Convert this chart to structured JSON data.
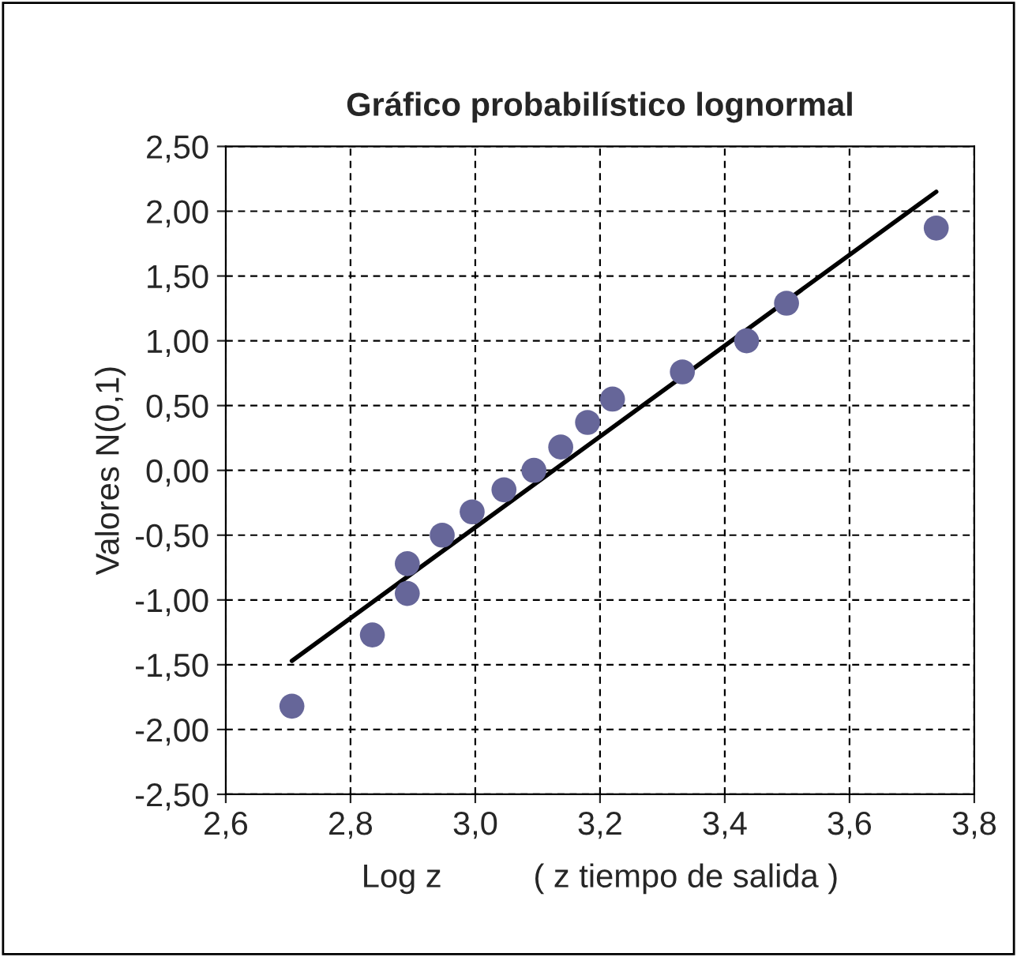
{
  "chart_data": {
    "type": "scatter",
    "title": "Gráfico probabilístico lognormal",
    "xlabel": "Log z          ( z tiempo de salida )",
    "ylabel": "Valores N(0,1)",
    "series": [
      {
        "marker": "circle",
        "color": "#666699",
        "x": [
          2.706,
          2.835,
          2.891,
          2.891,
          2.947,
          2.995,
          3.046,
          3.094,
          3.137,
          3.18,
          3.22,
          3.332,
          3.435,
          3.499,
          3.739
        ],
        "values": [
          -1.82,
          -1.27,
          -0.72,
          -0.95,
          -0.5,
          -0.32,
          -0.15,
          0.0,
          0.18,
          0.37,
          0.55,
          0.76,
          1.0,
          1.29,
          1.87
        ]
      },
      {
        "type": "line",
        "marker": "none",
        "color": "#000000",
        "x": [
          2.706,
          3.739
        ],
        "values": [
          -1.47,
          2.15
        ]
      }
    ],
    "xlim": [
      2.6,
      3.8
    ],
    "xticks": [
      {
        "value": 2.6,
        "label": "2,6"
      },
      {
        "value": 2.8,
        "label": "2,8"
      },
      {
        "value": 3.0,
        "label": "3,0"
      },
      {
        "value": 3.2,
        "label": "3,2"
      },
      {
        "value": 3.4,
        "label": "3,4"
      },
      {
        "value": 3.6,
        "label": "3,6"
      },
      {
        "value": 3.8,
        "label": "3,8"
      }
    ],
    "ylim": [
      -2.5,
      2.5
    ],
    "yticks": [
      {
        "value": -2.5,
        "label": "-2,50"
      },
      {
        "value": -2.0,
        "label": "-2,00"
      },
      {
        "value": -1.5,
        "label": "-1,50"
      },
      {
        "value": -1.0,
        "label": "-1,00"
      },
      {
        "value": -0.5,
        "label": "-0,50"
      },
      {
        "value": 0,
        "label": "0,00"
      },
      {
        "value": 0.5,
        "label": "0,50"
      },
      {
        "value": 1.0,
        "label": "1,00"
      },
      {
        "value": 1.5,
        "label": "1,50"
      },
      {
        "value": 2.0,
        "label": "2,00"
      },
      {
        "value": 2.5,
        "label": "2,50"
      }
    ],
    "grid": true
  }
}
